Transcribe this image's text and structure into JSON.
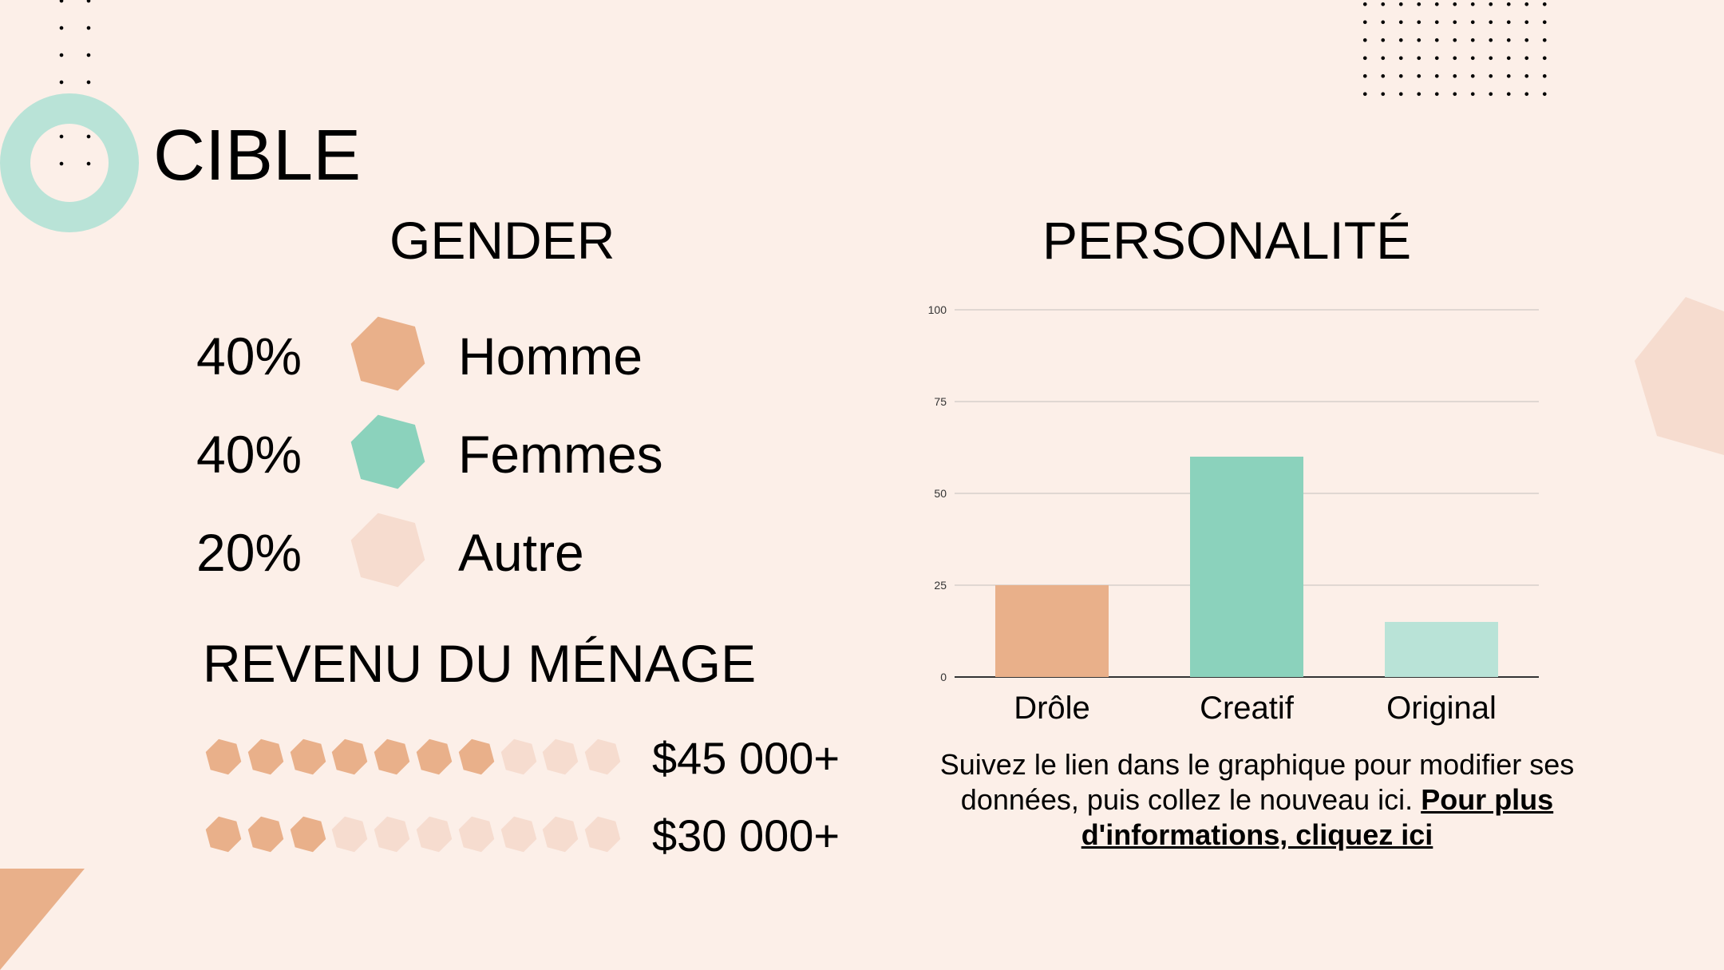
{
  "title": "CIBLE",
  "gender": {
    "title": "GENDER",
    "rows": [
      {
        "percent": "40%",
        "label": "Homme",
        "color": "#e9b08a"
      },
      {
        "percent": "40%",
        "label": "Femmes",
        "color": "#8bd2bc"
      },
      {
        "percent": "20%",
        "label": "Autre",
        "color": "#f6dccf"
      }
    ]
  },
  "revenue": {
    "title": "REVENU DU MÉNAGE",
    "rows": [
      {
        "label": "$45 000+",
        "filled": 7,
        "total": 10
      },
      {
        "label": "$30 000+",
        "filled": 3,
        "total": 10
      }
    ],
    "filled_color": "#e9b08a",
    "empty_color": "#f6dccf"
  },
  "personality": {
    "title": "PERSONALITÉ",
    "note": "Suivez le lien dans le graphique pour modifier ses données, puis collez le nouveau ici.",
    "link_text": "Pour plus d'informations, cliquez ici"
  },
  "chart_data": {
    "type": "bar",
    "title": "PERSONALITÉ",
    "categories": [
      "Drôle",
      "Creatif",
      "Original"
    ],
    "values": [
      25,
      60,
      15
    ],
    "colors": [
      "#e9b08a",
      "#8bd2bc",
      "#b9e3d7"
    ],
    "ylim": [
      0,
      100
    ],
    "yticks": [
      0,
      25,
      50,
      75,
      100
    ],
    "xlabel": "",
    "ylabel": "",
    "grid": true
  },
  "colors": {
    "background": "#fcefe8",
    "accent_peach": "#e9b08a",
    "accent_green": "#8bd2bc",
    "accent_light_green": "#b9e3d7",
    "accent_light_peach": "#f6dccf"
  }
}
